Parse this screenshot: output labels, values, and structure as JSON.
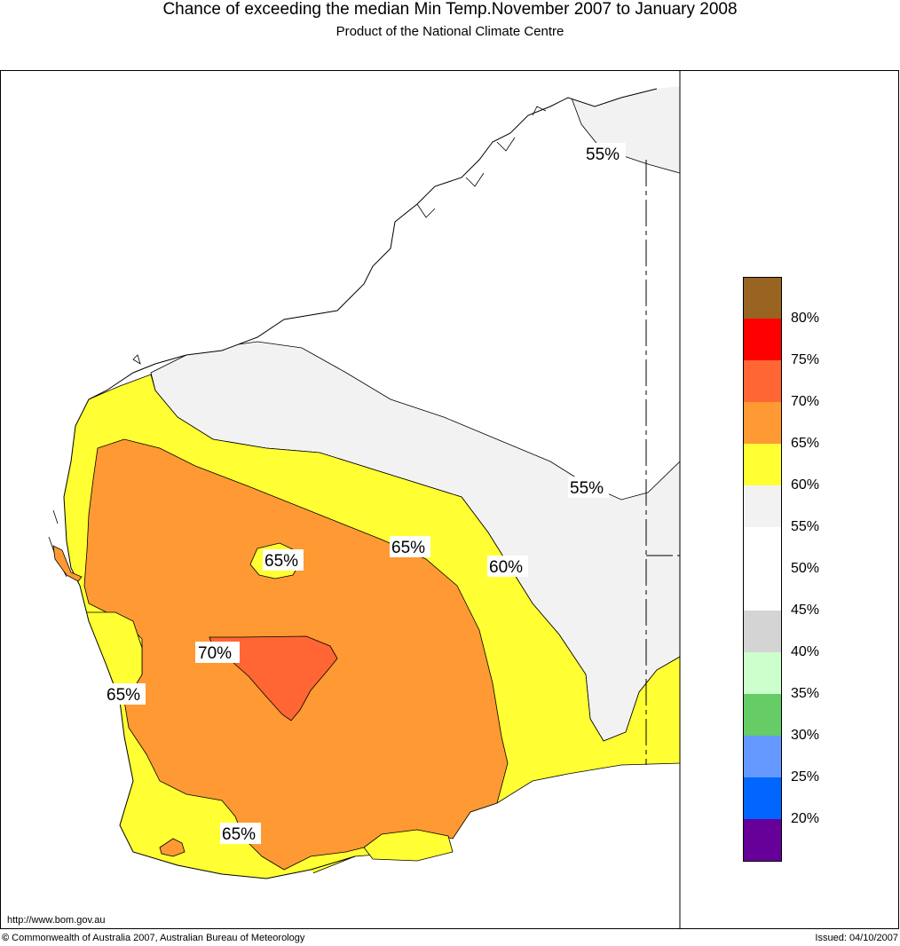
{
  "title": "Chance of exceeding the median Min Temp.November 2007 to January 2008",
  "subtitle": "Product of the National Climate Centre",
  "url": "http://www.bom.gov.au",
  "copyright": "Commonwealth of Australia 2007, Australian Bureau of Meteorology",
  "copyright_symbol": "©",
  "issued": "Issued: 04/10/2007",
  "contour_labels": {
    "north_55": "55%",
    "east_55": "55%",
    "mid_60": "60%",
    "mid_65": "65%",
    "blob_65": "65%",
    "centre_70": "70%",
    "west_65": "65%",
    "south_65": "65%"
  },
  "legend": {
    "labels": [
      "80%",
      "75%",
      "70%",
      "65%",
      "60%",
      "55%",
      "50%",
      "45%",
      "40%",
      "35%",
      "30%",
      "25%",
      "20%"
    ],
    "colors": [
      "#996322",
      "#ff0000",
      "#ff6633",
      "#ff9933",
      "#ffff33",
      "#f2f2f2",
      "#ffffff",
      "#ffffff",
      "#d4d4d4",
      "#ccffcc",
      "#66cc66",
      "#6699ff",
      "#0066ff",
      "#660099"
    ]
  }
}
